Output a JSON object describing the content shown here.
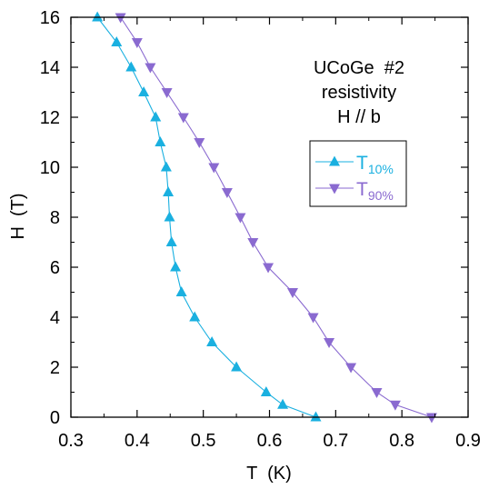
{
  "chart_data": {
    "type": "line",
    "title": "",
    "annotation_lines": [
      "UCoGe  #2",
      "resistivity",
      "H // b"
    ],
    "xlabel": "T  (K)",
    "ylabel": "H  (T)",
    "xlim": [
      0.3,
      0.9
    ],
    "ylim": [
      0,
      16
    ],
    "xticks": [
      "0.3",
      "0.4",
      "0.5",
      "0.6",
      "0.7",
      "0.8",
      "0.9"
    ],
    "yticks": [
      "0",
      "2",
      "4",
      "6",
      "8",
      "10",
      "12",
      "14",
      "16"
    ],
    "grid": false,
    "legend_position": "upper-right",
    "series": [
      {
        "name": "T",
        "subscript": "10%",
        "marker": "triangle-up",
        "color": "#1ab0e0",
        "points": [
          [
            0.67,
            0.0
          ],
          [
            0.62,
            0.5
          ],
          [
            0.595,
            1.0
          ],
          [
            0.55,
            2.0
          ],
          [
            0.513,
            3.0
          ],
          [
            0.487,
            4.0
          ],
          [
            0.467,
            5.0
          ],
          [
            0.458,
            6.0
          ],
          [
            0.452,
            7.0
          ],
          [
            0.449,
            8.0
          ],
          [
            0.447,
            9.0
          ],
          [
            0.444,
            10.0
          ],
          [
            0.435,
            11.0
          ],
          [
            0.428,
            12.0
          ],
          [
            0.41,
            13.0
          ],
          [
            0.391,
            14.0
          ],
          [
            0.369,
            15.0
          ],
          [
            0.34,
            16.0
          ]
        ]
      },
      {
        "name": "T",
        "subscript": "90%",
        "marker": "triangle-down",
        "color": "#8a6ad0",
        "points": [
          [
            0.845,
            0.0
          ],
          [
            0.79,
            0.5
          ],
          [
            0.762,
            1.0
          ],
          [
            0.723,
            2.0
          ],
          [
            0.69,
            3.0
          ],
          [
            0.666,
            4.0
          ],
          [
            0.635,
            5.0
          ],
          [
            0.598,
            6.0
          ],
          [
            0.575,
            7.0
          ],
          [
            0.556,
            8.0
          ],
          [
            0.536,
            9.0
          ],
          [
            0.516,
            10.0
          ],
          [
            0.494,
            11.0
          ],
          [
            0.47,
            12.0
          ],
          [
            0.445,
            13.0
          ],
          [
            0.42,
            14.0
          ],
          [
            0.4,
            15.0
          ],
          [
            0.375,
            16.0
          ]
        ]
      }
    ]
  }
}
